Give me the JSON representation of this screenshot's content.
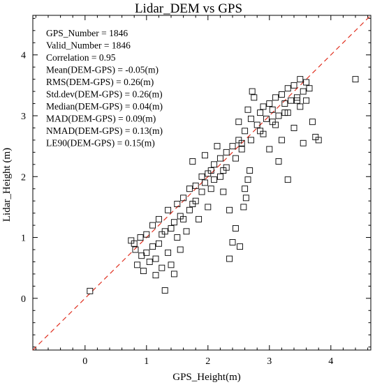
{
  "chart_data": {
    "type": "scatter",
    "title": "Lidar_DEM vs GPS",
    "xlabel": "GPS_Height(m)",
    "ylabel": "Lidar_Height (m)",
    "xlim": [
      -0.85,
      4.65
    ],
    "ylim": [
      -0.85,
      4.65
    ],
    "x_ticks": [
      0,
      1,
      2,
      3,
      4
    ],
    "y_ticks": [
      0,
      1,
      2,
      3,
      4
    ],
    "tick_labels_x": [
      "0",
      "1",
      "2",
      "3",
      "4"
    ],
    "tick_labels_y": [
      "0",
      "1",
      "2",
      "3",
      "4"
    ],
    "reference_line": {
      "type": "1:1",
      "color": "#e03020",
      "style": "dashed"
    },
    "marker": "open-square",
    "annotations": [
      "GPS_Number      = 1846",
      "Valid_Number    = 1846",
      "Correlation     = 0.95",
      "Mean(DEM-GPS)    = -0.05(m)",
      "RMS(DEM-GPS)    = 0.26(m)",
      "Std.dev(DEM-GPS) = 0.26(m)",
      "Median(DEM-GPS)   = 0.04(m)",
      "MAD(DEM-GPS)    = 0.09(m)",
      "NMAD(DEM-GPS)  = 0.13(m)",
      "LE90(DEM-GPS)    = 0.15(m)"
    ],
    "series": [
      {
        "points": [
          [
            0.08,
            0.12
          ],
          [
            0.75,
            0.95
          ],
          [
            0.8,
            0.9
          ],
          [
            0.82,
            0.8
          ],
          [
            0.85,
            0.55
          ],
          [
            0.9,
            1.0
          ],
          [
            0.92,
            0.7
          ],
          [
            0.95,
            0.45
          ],
          [
            1.0,
            1.05
          ],
          [
            1.0,
            0.75
          ],
          [
            1.05,
            0.6
          ],
          [
            1.1,
            1.2
          ],
          [
            1.1,
            0.85
          ],
          [
            1.15,
            0.38
          ],
          [
            1.15,
            0.65
          ],
          [
            1.2,
            1.3
          ],
          [
            1.2,
            0.9
          ],
          [
            1.25,
            0.5
          ],
          [
            1.3,
            0.13
          ],
          [
            1.3,
            1.1
          ],
          [
            1.35,
            1.45
          ],
          [
            1.35,
            0.75
          ],
          [
            1.4,
            0.55
          ],
          [
            1.45,
            0.4
          ],
          [
            1.45,
            1.25
          ],
          [
            1.5,
            1.55
          ],
          [
            1.5,
            1.0
          ],
          [
            1.55,
            0.8
          ],
          [
            1.6,
            1.65
          ],
          [
            1.6,
            1.3
          ],
          [
            1.65,
            1.1
          ],
          [
            1.7,
            1.8
          ],
          [
            1.7,
            1.45
          ],
          [
            1.75,
            2.25
          ],
          [
            1.8,
            1.85
          ],
          [
            1.8,
            1.6
          ],
          [
            1.85,
            1.3
          ],
          [
            1.9,
            2.0
          ],
          [
            1.9,
            1.75
          ],
          [
            1.95,
            2.35
          ],
          [
            2.0,
            2.05
          ],
          [
            2.0,
            1.5
          ],
          [
            2.05,
            1.8
          ],
          [
            2.1,
            2.2
          ],
          [
            2.1,
            1.95
          ],
          [
            2.15,
            2.5
          ],
          [
            2.2,
            2.3
          ],
          [
            2.2,
            2.0
          ],
          [
            2.25,
            1.75
          ],
          [
            2.3,
            2.4
          ],
          [
            2.3,
            2.15
          ],
          [
            2.35,
            1.45
          ],
          [
            2.4,
            2.5
          ],
          [
            2.4,
            0.92
          ],
          [
            2.45,
            2.3
          ],
          [
            2.5,
            2.6
          ],
          [
            2.5,
            2.9
          ],
          [
            2.52,
            0.85
          ],
          [
            2.55,
            2.45
          ],
          [
            2.58,
            1.5
          ],
          [
            2.6,
            1.8
          ],
          [
            2.6,
            2.75
          ],
          [
            2.62,
            1.65
          ],
          [
            2.65,
            3.1
          ],
          [
            2.65,
            1.95
          ],
          [
            2.68,
            2.1
          ],
          [
            2.7,
            2.95
          ],
          [
            2.7,
            2.6
          ],
          [
            2.72,
            3.4
          ],
          [
            2.75,
            3.3
          ],
          [
            2.8,
            2.85
          ],
          [
            2.85,
            3.05
          ],
          [
            2.9,
            2.7
          ],
          [
            2.9,
            3.15
          ],
          [
            2.95,
            2.95
          ],
          [
            3.0,
            3.2
          ],
          [
            3.0,
            2.45
          ],
          [
            3.05,
            3.1
          ],
          [
            3.1,
            3.3
          ],
          [
            3.1,
            2.85
          ],
          [
            3.15,
            3.0
          ],
          [
            3.2,
            3.35
          ],
          [
            3.2,
            2.6
          ],
          [
            3.25,
            3.2
          ],
          [
            3.3,
            3.45
          ],
          [
            3.3,
            3.05
          ],
          [
            3.35,
            3.25
          ],
          [
            3.4,
            3.5
          ],
          [
            3.4,
            2.8
          ],
          [
            3.45,
            3.3
          ],
          [
            3.5,
            3.6
          ],
          [
            3.5,
            3.15
          ],
          [
            3.55,
            3.4
          ],
          [
            3.55,
            2.55
          ],
          [
            3.6,
            3.55
          ],
          [
            3.6,
            3.25
          ],
          [
            3.65,
            3.45
          ],
          [
            3.7,
            2.9
          ],
          [
            3.75,
            2.65
          ],
          [
            3.8,
            2.6
          ],
          [
            3.3,
            1.95
          ],
          [
            3.15,
            2.25
          ],
          [
            2.35,
            0.65
          ],
          [
            2.45,
            1.15
          ],
          [
            1.25,
            1.05
          ],
          [
            1.4,
            1.15
          ],
          [
            1.55,
            1.35
          ],
          [
            1.75,
            1.55
          ],
          [
            1.95,
            1.9
          ],
          [
            2.05,
            2.1
          ],
          [
            2.25,
            2.1
          ],
          [
            2.55,
            2.55
          ],
          [
            2.85,
            2.75
          ],
          [
            3.05,
            2.9
          ],
          [
            3.25,
            3.05
          ],
          [
            3.45,
            3.25
          ],
          [
            4.4,
            3.6
          ]
        ]
      }
    ]
  }
}
